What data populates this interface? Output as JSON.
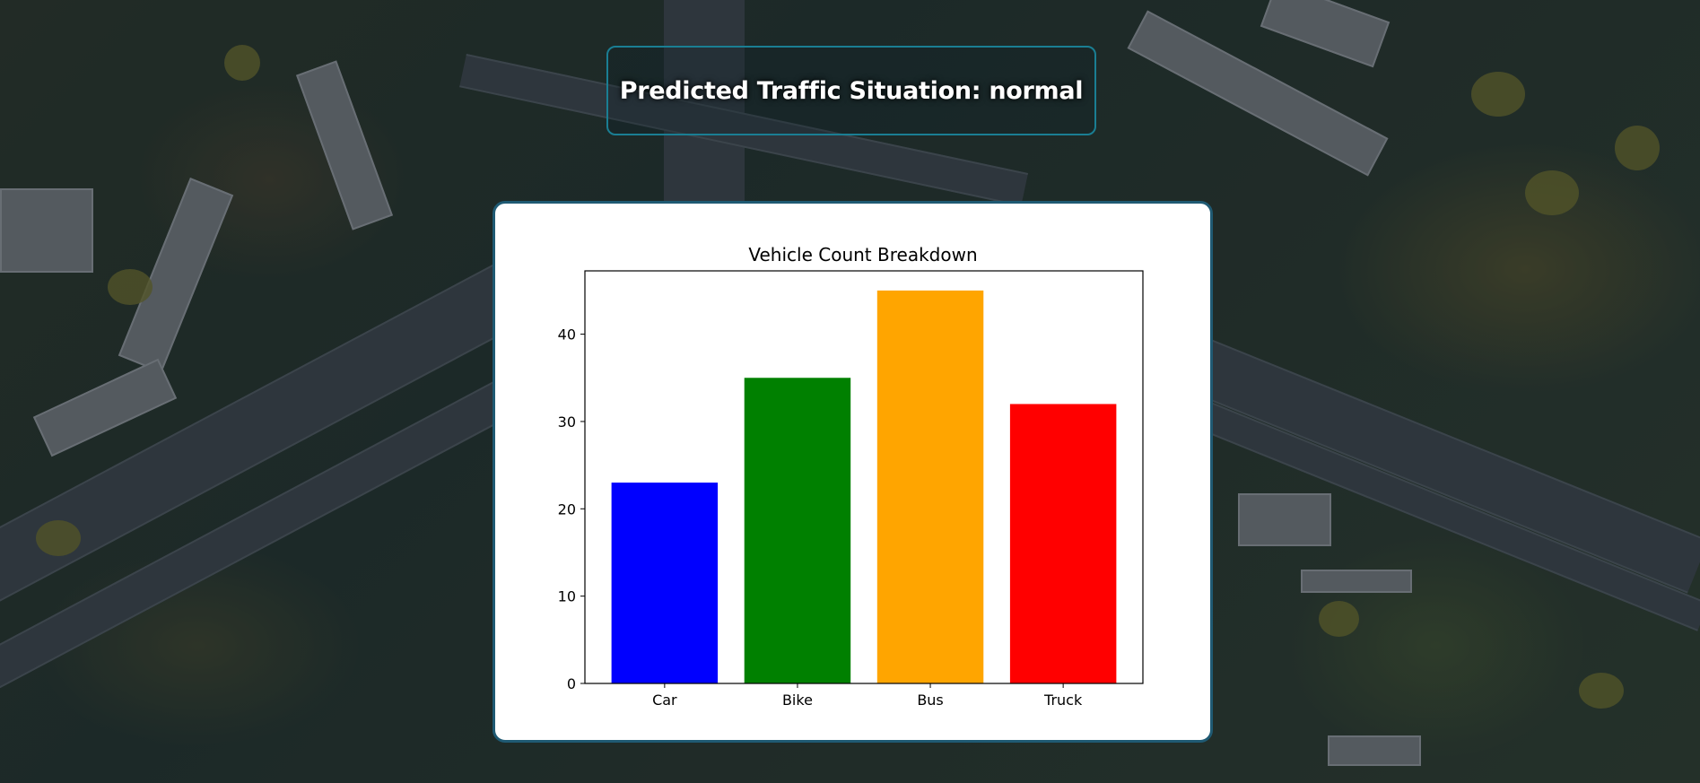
{
  "header": {
    "prediction_text": "Predicted Traffic Situation: normal"
  },
  "chart_data": {
    "type": "bar",
    "title": "Vehicle Count Breakdown",
    "xlabel": "",
    "ylabel": "",
    "categories": [
      "Car",
      "Bike",
      "Bus",
      "Truck"
    ],
    "values": [
      23,
      35,
      45,
      32
    ],
    "colors": [
      "#0000ff",
      "#008000",
      "#ffa500",
      "#ff0000"
    ],
    "ylim": [
      0,
      47.25
    ],
    "yticks": [
      0,
      10,
      20,
      30,
      40
    ],
    "grid": false,
    "legend": "none"
  }
}
